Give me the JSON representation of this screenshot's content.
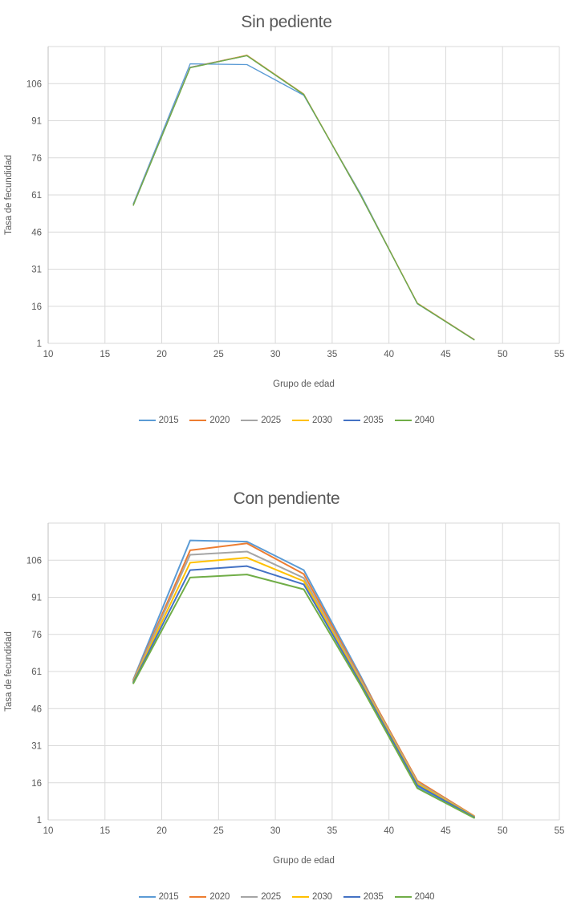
{
  "theme": {
    "background": "#ffffff",
    "grid_color": "#d9d9d9",
    "axis_line_color": "#bfbfbf",
    "text_color": "#595959",
    "title_color": "#595959"
  },
  "chart_data": [
    {
      "type": "line",
      "title": "Sin pediente",
      "xlabel": "Grupo de edad",
      "ylabel": "Tasa de fecundidad",
      "x": [
        17.5,
        22.5,
        27.5,
        32.5,
        37.5,
        42.5,
        47.5
      ],
      "series": [
        {
          "name": "2015",
          "color": "#5B9BD5",
          "values": [
            57.5,
            114.0,
            113.7,
            101.3,
            61.5,
            17.0,
            2.5
          ]
        },
        {
          "name": "2020",
          "color": "#ED7D31",
          "values": [
            57.0,
            112.6,
            117.5,
            101.8,
            61.0,
            17.3,
            2.6
          ]
        },
        {
          "name": "2025",
          "color": "#A5A5A5",
          "values": [
            57.0,
            112.6,
            117.4,
            101.7,
            61.0,
            17.2,
            2.5
          ]
        },
        {
          "name": "2030",
          "color": "#FFC000",
          "values": [
            57.0,
            112.5,
            117.4,
            101.7,
            61.0,
            17.2,
            2.5
          ]
        },
        {
          "name": "2035",
          "color": "#4472C4",
          "values": [
            56.9,
            112.5,
            117.3,
            101.6,
            60.9,
            17.1,
            2.5
          ]
        },
        {
          "name": "2040",
          "color": "#70AD47",
          "values": [
            56.8,
            112.4,
            117.3,
            101.6,
            60.9,
            17.1,
            2.4
          ]
        }
      ],
      "xlim": [
        10,
        55
      ],
      "ylim": [
        1,
        121
      ],
      "xticks": [
        10,
        15,
        20,
        25,
        30,
        35,
        40,
        45,
        50,
        55
      ],
      "yticks": [
        1,
        16,
        31,
        46,
        61,
        76,
        91,
        106
      ],
      "ygrid_step": 15,
      "grid": true,
      "legend_position": "bottom",
      "line_width": 1.3
    },
    {
      "type": "line",
      "title": "Con pendiente",
      "xlabel": "Grupo de edad",
      "ylabel": "Tasa de fecundidad",
      "x": [
        17.5,
        22.5,
        27.5,
        32.5,
        37.5,
        42.5,
        47.5
      ],
      "series": [
        {
          "name": "2015",
          "color": "#5B9BD5",
          "values": [
            57.8,
            114.0,
            113.5,
            102.0,
            59.2,
            14.3,
            2.2
          ]
        },
        {
          "name": "2020",
          "color": "#ED7D31",
          "values": [
            57.5,
            110.0,
            112.8,
            100.4,
            58.4,
            16.8,
            2.6
          ]
        },
        {
          "name": "2025",
          "color": "#A5A5A5",
          "values": [
            57.2,
            108.2,
            109.5,
            98.8,
            57.7,
            16.2,
            2.4
          ]
        },
        {
          "name": "2030",
          "color": "#FFC000",
          "values": [
            56.9,
            105.0,
            107.0,
            97.5,
            57.0,
            15.6,
            2.3
          ]
        },
        {
          "name": "2035",
          "color": "#4472C4",
          "values": [
            56.6,
            102.0,
            103.6,
            96.2,
            56.3,
            15.0,
            2.1
          ]
        },
        {
          "name": "2040",
          "color": "#70AD47",
          "values": [
            56.2,
            99.0,
            100.2,
            94.2,
            55.4,
            13.8,
            1.8
          ]
        }
      ],
      "xlim": [
        10,
        55
      ],
      "ylim": [
        1,
        121
      ],
      "xticks": [
        10,
        15,
        20,
        25,
        30,
        35,
        40,
        45,
        50,
        55
      ],
      "yticks": [
        1,
        16,
        31,
        46,
        61,
        76,
        91,
        106
      ],
      "ygrid_step": 15,
      "grid": true,
      "legend_position": "bottom",
      "line_width": 2
    }
  ]
}
